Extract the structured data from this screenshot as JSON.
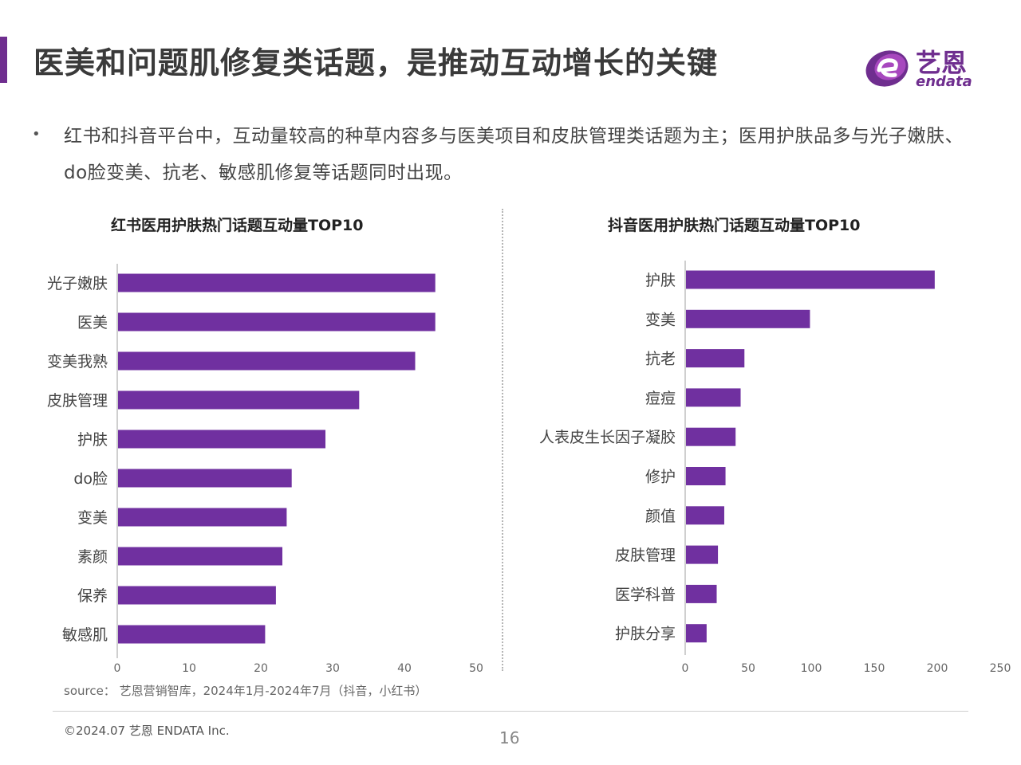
{
  "page": {
    "title": "医美和问题肌修复类话题，是推动互动增长的关键",
    "bullet": "红书和抖音平台中，互动量较高的种草内容多与医美项目和皮肤管理类话题为主；医用护肤品多与光子嫩肤、do脸变美、抗老、敏感肌修复等话题同时出现。",
    "source": "source： 艺恩营销智库，2024年1月-2024年7月（抖音，小红书）",
    "copyright": "©2024.07  艺恩 ENDATA Inc.",
    "page_number": "16"
  },
  "logo": {
    "cn": "艺恩",
    "en": "endata"
  },
  "colors": {
    "accent": "#6f2e8f",
    "bar": "#7030a0",
    "axis": "#bfbfbf",
    "text": "#333333"
  },
  "chart_data": [
    {
      "type": "bar",
      "orientation": "horizontal",
      "title": "红书医用护肤热门话题互动量TOP10",
      "categories": [
        "光子嫩肤",
        "医美",
        "变美我熟",
        "皮肤管理",
        "护肤",
        "do脸",
        "变美",
        "素颜",
        "保养",
        "敏感肌"
      ],
      "values": [
        44.3,
        44.3,
        41.5,
        33.7,
        29,
        24.3,
        23.6,
        23,
        22.1,
        20.6
      ],
      "xlim": [
        0,
        50
      ],
      "xticks": [
        "0",
        "10",
        "20",
        "30",
        "40",
        "50"
      ],
      "grid": false,
      "xlabel": "",
      "ylabel": ""
    },
    {
      "type": "bar",
      "orientation": "horizontal",
      "title": "抖音医用护肤热门话题互动量TOP10",
      "categories": [
        "护肤",
        "变美",
        "抗老",
        "痘痘",
        "人表皮生长因子凝胶",
        "修护",
        "颜值",
        "皮肤管理",
        "医学科普",
        "护肤分享"
      ],
      "values": [
        198,
        99,
        47,
        44,
        40,
        32,
        31,
        26,
        25,
        17
      ],
      "xlim": [
        0,
        250
      ],
      "xticks": [
        "0",
        "50",
        "100",
        "150",
        "200",
        "250"
      ],
      "grid": false,
      "xlabel": "",
      "ylabel": ""
    }
  ]
}
